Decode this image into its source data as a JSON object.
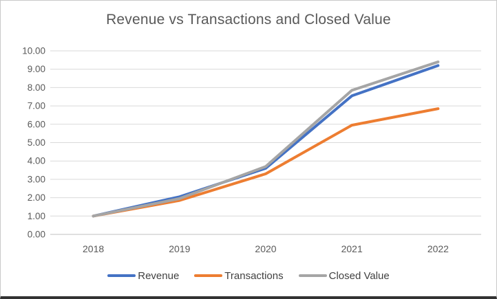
{
  "chart": {
    "frame_border_color": "#c9c9c9",
    "bottom_edge_color": "#333333"
  },
  "chart_data": {
    "type": "line",
    "title": "Revenue vs Transactions and Closed Value",
    "categories": [
      "2018",
      "2019",
      "2020",
      "2021",
      "2022"
    ],
    "series": [
      {
        "name": "Revenue",
        "color": "#4472C4",
        "values": [
          1.0,
          2.05,
          3.6,
          7.55,
          9.2
        ]
      },
      {
        "name": "Transactions",
        "color": "#ED7D31",
        "values": [
          1.0,
          1.85,
          3.3,
          5.95,
          6.85
        ]
      },
      {
        "name": "Closed Value",
        "color": "#A5A5A5",
        "values": [
          1.0,
          1.95,
          3.7,
          7.85,
          9.4
        ]
      }
    ],
    "xlabel": "",
    "ylabel": "",
    "ylim": [
      0,
      10
    ],
    "ytick_step": 1,
    "ytick_decimals": 2,
    "grid": true,
    "legend_position": "bottom",
    "styles": {
      "gridline_color": "#D9D9D9",
      "axis_line_color": "#BFBFBF",
      "tick_label_color": "#595959",
      "title_color": "#595959",
      "legend_text_color": "#404040",
      "line_width": 4
    }
  }
}
